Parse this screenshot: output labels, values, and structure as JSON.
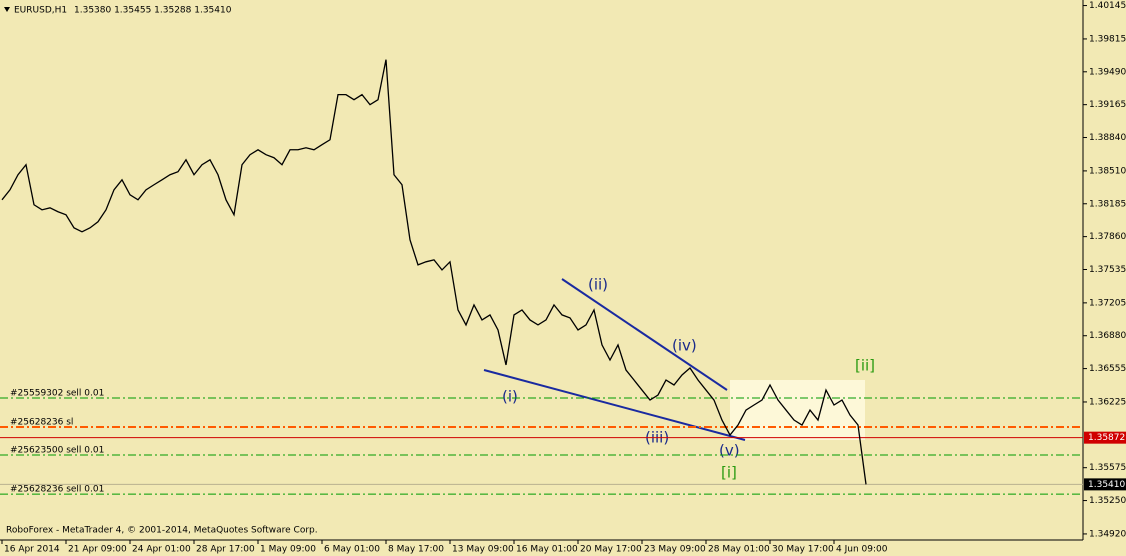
{
  "chart_data": {
    "type": "line",
    "title": "EURUSD,H1",
    "quote": "1.35380 1.35455 1.35288 1.35410",
    "footer": "RoboForex - MetaTrader 4, © 2001-2014, MetaQuotes Software Corp.",
    "categories": [
      "16 Apr 2014",
      null,
      null,
      null,
      null,
      null,
      null,
      null,
      "21 Apr 09:00",
      null,
      null,
      null,
      null,
      null,
      null,
      null,
      "24 Apr 01:00",
      null,
      null,
      null,
      null,
      null,
      null,
      null,
      "28 Apr 17:00",
      null,
      null,
      null,
      null,
      null,
      null,
      null,
      "1 May 09:00",
      null,
      null,
      null,
      null,
      null,
      null,
      null,
      "6 May 01:00",
      null,
      null,
      null,
      null,
      null,
      null,
      null,
      "8 May 17:00",
      null,
      null,
      null,
      null,
      null,
      null,
      null,
      "13 May 09:00",
      null,
      null,
      null,
      null,
      null,
      null,
      null,
      "16 May 01:00",
      null,
      null,
      null,
      null,
      null,
      null,
      null,
      "20 May 17:00",
      null,
      null,
      null,
      null,
      null,
      null,
      null,
      "23 May 09:00",
      null,
      null,
      null,
      null,
      null,
      null,
      null,
      "28 May 01:00",
      null,
      null,
      null,
      null,
      null,
      null,
      null,
      "30 May 17:00",
      null,
      null,
      null,
      null,
      null,
      null,
      null,
      "4 Jun 09:00",
      null,
      null,
      null,
      null
    ],
    "series": [
      {
        "name": "EURUSD",
        "color": "#000000",
        "values": [
          1.38224,
          1.38323,
          1.38472,
          1.38571,
          1.38175,
          1.38125,
          1.38145,
          1.38106,
          1.38076,
          1.37947,
          1.37908,
          1.37947,
          1.38007,
          1.38125,
          1.38323,
          1.38422,
          1.38274,
          1.38224,
          1.38323,
          1.38373,
          1.38422,
          1.38472,
          1.38502,
          1.3862,
          1.38472,
          1.38571,
          1.3862,
          1.38472,
          1.38224,
          1.38076,
          1.38571,
          1.3867,
          1.38719,
          1.3867,
          1.3864,
          1.38571,
          1.38719,
          1.38719,
          1.38739,
          1.38719,
          1.38769,
          1.38818,
          1.39264,
          1.39264,
          1.39214,
          1.39264,
          1.39165,
          1.39214,
          1.3961,
          1.38472,
          1.38373,
          1.37828,
          1.37581,
          1.37611,
          1.3763,
          1.37531,
          1.37611,
          1.37135,
          1.36987,
          1.37185,
          1.37036,
          1.37086,
          1.36937,
          1.36591,
          1.37086,
          1.37135,
          1.37036,
          1.36987,
          1.37036,
          1.37185,
          1.37086,
          1.37056,
          1.36937,
          1.36987,
          1.37135,
          1.36789,
          1.3664,
          1.36789,
          1.36541,
          1.36442,
          1.36343,
          1.36244,
          1.36294,
          1.36442,
          1.36393,
          1.36492,
          1.36561,
          1.36442,
          1.36343,
          1.36244,
          1.36046,
          1.35898,
          1.35997,
          1.36145,
          1.36195,
          1.36244,
          1.36393,
          1.36244,
          1.36145,
          1.36046,
          1.35997,
          1.36145,
          1.36046,
          1.36343,
          1.36195,
          1.36244,
          1.36096,
          1.35997,
          1.3541
        ]
      }
    ],
    "ylim": [
      1.3486,
      1.402
    ],
    "yticks": [
      1.40145,
      1.39815,
      {
        "value": 1.3949,
        "label": "1.39490"
      },
      1.39165,
      {
        "value": 1.3884,
        "label": "1.38840"
      },
      {
        "value": 1.3851,
        "label": "1.38510"
      },
      1.38185,
      {
        "value": 1.3786,
        "label": "1.37860"
      },
      1.37535,
      1.37205,
      {
        "value": 1.3688,
        "label": "1.36880"
      },
      1.36555,
      1.36225,
      1.35575,
      {
        "value": 1.3525,
        "label": "1.35250"
      },
      {
        "value": 1.3492,
        "label": "1.34920"
      }
    ],
    "levels": [
      {
        "label": "#25559302 sell 0.01",
        "value": 1.36264,
        "color": "#009a00",
        "style": "dashdot"
      },
      {
        "label": "#25628236 sl",
        "value": 1.35977,
        "color": "#ff5a00",
        "style": "dashdot"
      },
      {
        "label": "#25623500 sell 0.01",
        "value": 1.357,
        "color": "#009a00",
        "style": "dashdot"
      },
      {
        "label": "#25628236 sell 0.01",
        "value": 1.35314,
        "color": "#009a00",
        "style": "dashdot"
      }
    ],
    "price_markers": [
      {
        "value": 1.35872,
        "color": "#d00000"
      },
      {
        "value": 1.3541,
        "label": "1.35410",
        "color": "#000000"
      }
    ],
    "wave_labels": [
      "(i)",
      "(ii)",
      "(iii)",
      "(iv)",
      "(v)",
      "[i]",
      "[ii]"
    ]
  }
}
